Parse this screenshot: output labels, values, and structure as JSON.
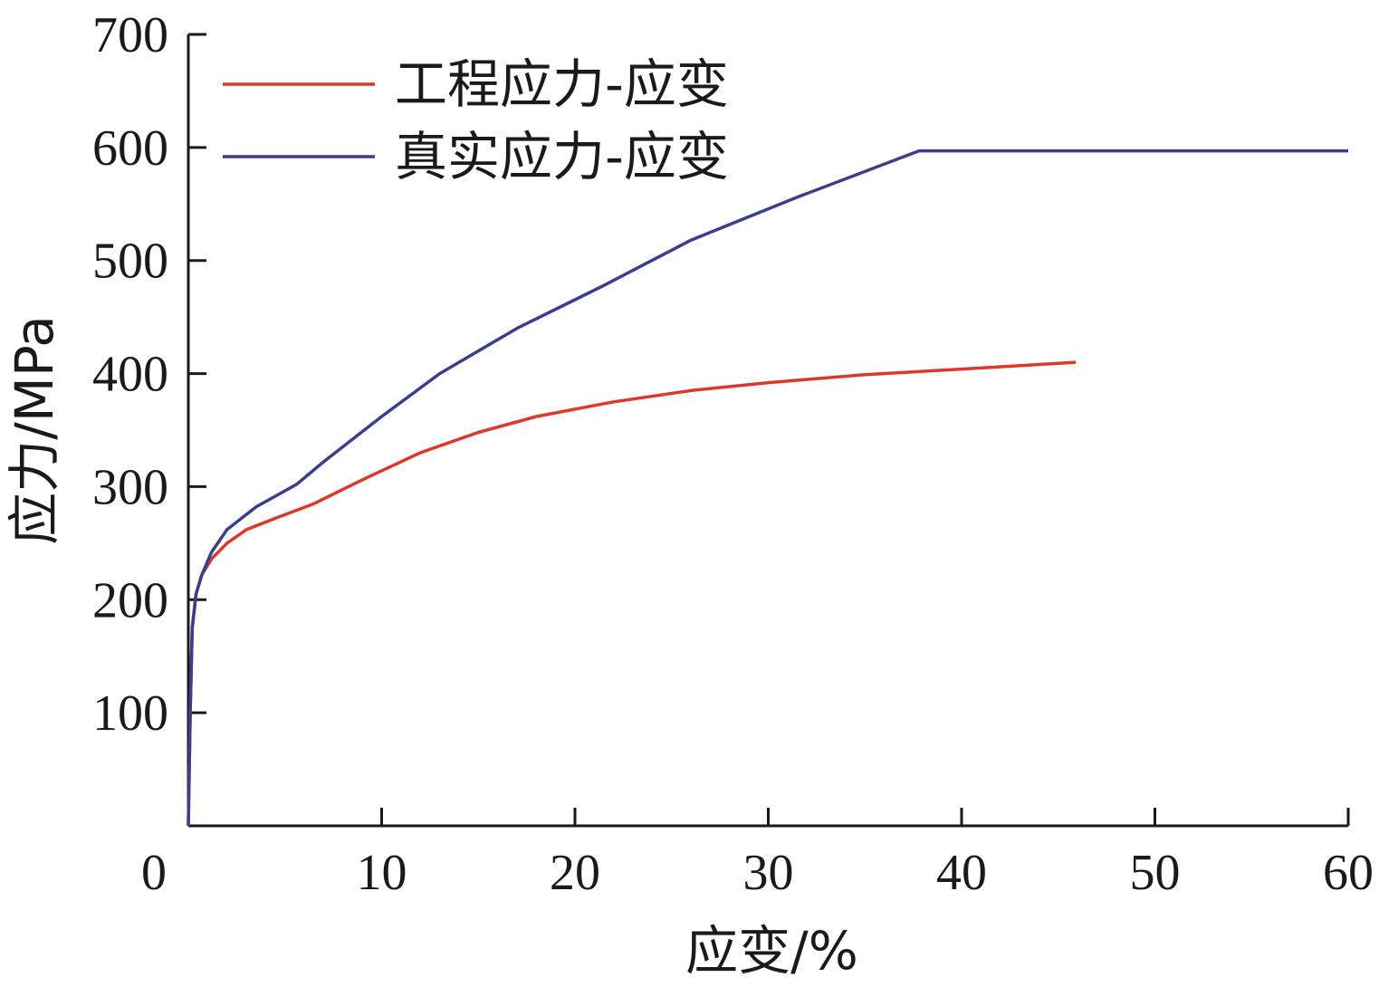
{
  "chart_data": {
    "type": "line",
    "xlabel": "应变/%",
    "ylabel": "应力/MPa",
    "xlim": [
      0,
      60
    ],
    "ylim": [
      0,
      700
    ],
    "xticks": [
      0,
      10,
      20,
      30,
      40,
      50,
      60
    ],
    "yticks": [
      100,
      200,
      300,
      400,
      500,
      600,
      700
    ],
    "grid": false,
    "legend_position": "top-left",
    "series": [
      {
        "name": "工程应力-应变",
        "color": "#d93a2b",
        "x": [
          0,
          0.1,
          0.2,
          0.4,
          0.7,
          1.2,
          2.0,
          3.0,
          4.5,
          6.5,
          9.0,
          12.0,
          15.0,
          18.0,
          22.0,
          26.0,
          30.0,
          35.0,
          40.0,
          45.9
        ],
        "y": [
          0,
          100,
          175,
          205,
          222,
          236,
          250,
          262,
          272,
          285,
          306,
          330,
          348,
          362,
          375,
          385,
          392,
          399,
          404,
          410
        ]
      },
      {
        "name": "真实应力-应变",
        "color": "#3a3f8c",
        "x": [
          0,
          0.1,
          0.2,
          0.4,
          0.7,
          1.2,
          2.0,
          3.5,
          5.6,
          7.0,
          10.0,
          13.0,
          17.0,
          21.5,
          26.0,
          31.5,
          37.8,
          60.0
        ],
        "y": [
          0,
          100,
          175,
          205,
          222,
          242,
          262,
          282,
          302,
          322,
          362,
          400,
          440,
          478,
          518,
          556,
          597,
          597
        ]
      }
    ]
  }
}
